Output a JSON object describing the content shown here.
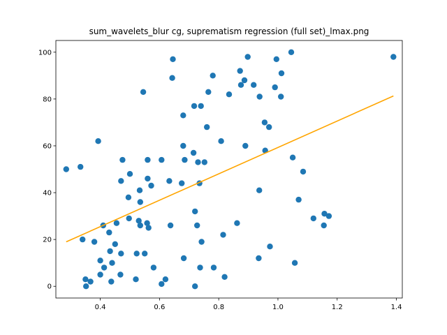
{
  "chart_data": {
    "type": "scatter",
    "title": "sum_wavelets_blur cg, suprematism regression (full set)_lmax.png",
    "xlabel": "",
    "ylabel": "",
    "xlim": [
      0.25,
      1.42
    ],
    "ylim": [
      -5,
      105
    ],
    "xticks": [
      0.4,
      0.6,
      0.8,
      1.0,
      1.2,
      1.4
    ],
    "xtick_labels": [
      "0.4",
      "0.6",
      "0.8",
      "1.0",
      "1.2",
      "1.4"
    ],
    "yticks": [
      0,
      20,
      40,
      60,
      80,
      100
    ],
    "ytick_labels": [
      "0",
      "20",
      "40",
      "60",
      "80",
      "100"
    ],
    "grid": false,
    "colors": {
      "points": "#1f77b4",
      "fit": "#ffa500"
    },
    "series": [
      {
        "type": "scatter",
        "points": [
          [
            0.285,
            50
          ],
          [
            0.333,
            51
          ],
          [
            0.34,
            20
          ],
          [
            0.35,
            3
          ],
          [
            0.352,
            0
          ],
          [
            0.367,
            2
          ],
          [
            0.38,
            19
          ],
          [
            0.393,
            62
          ],
          [
            0.4,
            11
          ],
          [
            0.4,
            5
          ],
          [
            0.41,
            26
          ],
          [
            0.413,
            8
          ],
          [
            0.43,
            23
          ],
          [
            0.433,
            15
          ],
          [
            0.437,
            2
          ],
          [
            0.44,
            10
          ],
          [
            0.45,
            18
          ],
          [
            0.455,
            27
          ],
          [
            0.468,
            5
          ],
          [
            0.47,
            14
          ],
          [
            0.47,
            45
          ],
          [
            0.475,
            54
          ],
          [
            0.495,
            38
          ],
          [
            0.497,
            29
          ],
          [
            0.5,
            48
          ],
          [
            0.52,
            3
          ],
          [
            0.523,
            14
          ],
          [
            0.53,
            28
          ],
          [
            0.533,
            41
          ],
          [
            0.535,
            26
          ],
          [
            0.535,
            36
          ],
          [
            0.545,
            83
          ],
          [
            0.55,
            14
          ],
          [
            0.558,
            27
          ],
          [
            0.56,
            46
          ],
          [
            0.56,
            54
          ],
          [
            0.563,
            25
          ],
          [
            0.572,
            43
          ],
          [
            0.58,
            8
          ],
          [
            0.607,
            54
          ],
          [
            0.607,
            1
          ],
          [
            0.62,
            3
          ],
          [
            0.633,
            45
          ],
          [
            0.637,
            26
          ],
          [
            0.643,
            89
          ],
          [
            0.645,
            97
          ],
          [
            0.675,
            44
          ],
          [
            0.68,
            60
          ],
          [
            0.68,
            73
          ],
          [
            0.682,
            12
          ],
          [
            0.685,
            54
          ],
          [
            0.715,
            57
          ],
          [
            0.717,
            77
          ],
          [
            0.72,
            0
          ],
          [
            0.72,
            32
          ],
          [
            0.727,
            26
          ],
          [
            0.73,
            53
          ],
          [
            0.735,
            44
          ],
          [
            0.737,
            8
          ],
          [
            0.74,
            77
          ],
          [
            0.742,
            19
          ],
          [
            0.752,
            53
          ],
          [
            0.76,
            68
          ],
          [
            0.765,
            83
          ],
          [
            0.78,
            90
          ],
          [
            0.783,
            8
          ],
          [
            0.808,
            62
          ],
          [
            0.815,
            22
          ],
          [
            0.82,
            4
          ],
          [
            0.835,
            82
          ],
          [
            0.862,
            27
          ],
          [
            0.872,
            92
          ],
          [
            0.875,
            86
          ],
          [
            0.887,
            88
          ],
          [
            0.89,
            60
          ],
          [
            0.898,
            98
          ],
          [
            0.918,
            86
          ],
          [
            0.935,
            12
          ],
          [
            0.937,
            41
          ],
          [
            0.938,
            81
          ],
          [
            0.955,
            70
          ],
          [
            0.957,
            58
          ],
          [
            0.97,
            68
          ],
          [
            0.973,
            17
          ],
          [
            0.99,
            85
          ],
          [
            0.995,
            97
          ],
          [
            1.01,
            81
          ],
          [
            1.012,
            91
          ],
          [
            1.045,
            100
          ],
          [
            1.05,
            55
          ],
          [
            1.057,
            10
          ],
          [
            1.07,
            37
          ],
          [
            1.085,
            49
          ],
          [
            1.12,
            29
          ],
          [
            1.155,
            26
          ],
          [
            1.157,
            31
          ],
          [
            1.172,
            30
          ],
          [
            1.39,
            98
          ]
        ]
      },
      {
        "type": "line",
        "points": [
          [
            0.285,
            19
          ],
          [
            1.39,
            81.3
          ]
        ]
      }
    ]
  }
}
